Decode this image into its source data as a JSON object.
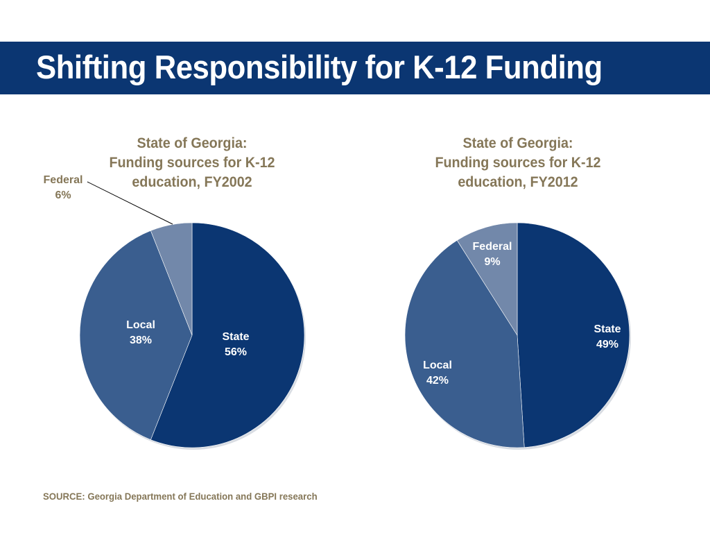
{
  "slide": {
    "title": "Shifting Responsibility for K-12 Funding",
    "source": "SOURCE: Georgia Department of Education and GBPI research"
  },
  "colors": {
    "title_bar": "#0b3672",
    "title_text": "#ffffff",
    "caption_text": "#857758",
    "slice_text": "#ffffff",
    "outside_label_text": "#857758"
  },
  "chart_data": [
    {
      "type": "pie",
      "title_lines": [
        "State of Georgia:",
        "Funding sources for K-12",
        "education, FY2002"
      ],
      "start_angle_deg": 0,
      "direction": "clockwise",
      "slices": [
        {
          "label": "State",
          "value_label": "56%",
          "value": 56,
          "color": "#0b3672",
          "label_placement": "inside"
        },
        {
          "label": "Local",
          "value_label": "38%",
          "value": 38,
          "color": "#3a5e8f",
          "label_placement": "inside"
        },
        {
          "label": "Federal",
          "value_label": "6%",
          "value": 6,
          "color": "#7288aa",
          "label_placement": "outside-leader"
        }
      ]
    },
    {
      "type": "pie",
      "title_lines": [
        "State of Georgia:",
        "Funding sources for K-12",
        "education, FY2012"
      ],
      "start_angle_deg": 0,
      "direction": "clockwise",
      "slices": [
        {
          "label": "State",
          "value_label": "49%",
          "value": 49,
          "color": "#0b3672",
          "label_placement": "inside"
        },
        {
          "label": "Local",
          "value_label": "42%",
          "value": 42,
          "color": "#3a5e8f",
          "label_placement": "inside"
        },
        {
          "label": "Federal",
          "value_label": "9%",
          "value": 9,
          "color": "#7288aa",
          "label_placement": "inside"
        }
      ]
    }
  ]
}
